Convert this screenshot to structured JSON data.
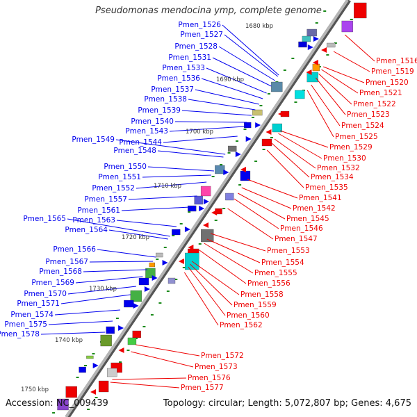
{
  "title": "Pseudomonas mendocina ymp, complete genome",
  "footer": {
    "accession": "Accession: NC_009439",
    "summary": "Topology: circular; Length: 5,072,807 bp; Genes: 4,675"
  },
  "colors": {
    "forward": "#0000ee",
    "reverse": "#ee0000",
    "backbone": "#888888",
    "tick": "#1a8a1a"
  },
  "kbp_labels": [
    "1680 kbp",
    "1690 kbp",
    "1700 kbp",
    "1710 kbp",
    "1720 kbp",
    "1730 kbp",
    "1740 kbp",
    "1750 kbp"
  ],
  "left_genes": [
    "Pmen_1526",
    "Pmen_1527",
    "Pmen_1528",
    "Pmen_1531",
    "Pmen_1533",
    "Pmen_1536",
    "Pmen_1537",
    "Pmen_1538",
    "Pmen_1539",
    "Pmen_1540",
    "Pmen_1543",
    "Pmen_1544",
    "Pmen_1549",
    "Pmen_1548",
    "Pmen_1550",
    "Pmen_1551",
    "Pmen_1552",
    "Pmen_1557",
    "Pmen_1561",
    "Pmen_1563",
    "Pmen_1565",
    "Pmen_1564",
    "Pmen_1566",
    "Pmen_1567",
    "Pmen_1568",
    "Pmen_1569",
    "Pmen_1570",
    "Pmen_1571",
    "Pmen_1574",
    "Pmen_1575",
    "Pmen_1578"
  ],
  "right_genes": [
    "Pmen_1516",
    "Pmen_1519",
    "Pmen_1520",
    "Pmen_1521",
    "Pmen_1522",
    "Pmen_1523",
    "Pmen_1524",
    "Pmen_1525",
    "Pmen_1529",
    "Pmen_1530",
    "Pmen_1532",
    "Pmen_1534",
    "Pmen_1535",
    "Pmen_1541",
    "Pmen_1542",
    "Pmen_1545",
    "Pmen_1546",
    "Pmen_1547",
    "Pmen_1553",
    "Pmen_1554",
    "Pmen_1555",
    "Pmen_1556",
    "Pmen_1558",
    "Pmen_1559",
    "Pmen_1560",
    "Pmen_1562",
    "Pmen_1572",
    "Pmen_1573",
    "Pmen_1576",
    "Pmen_1577"
  ]
}
